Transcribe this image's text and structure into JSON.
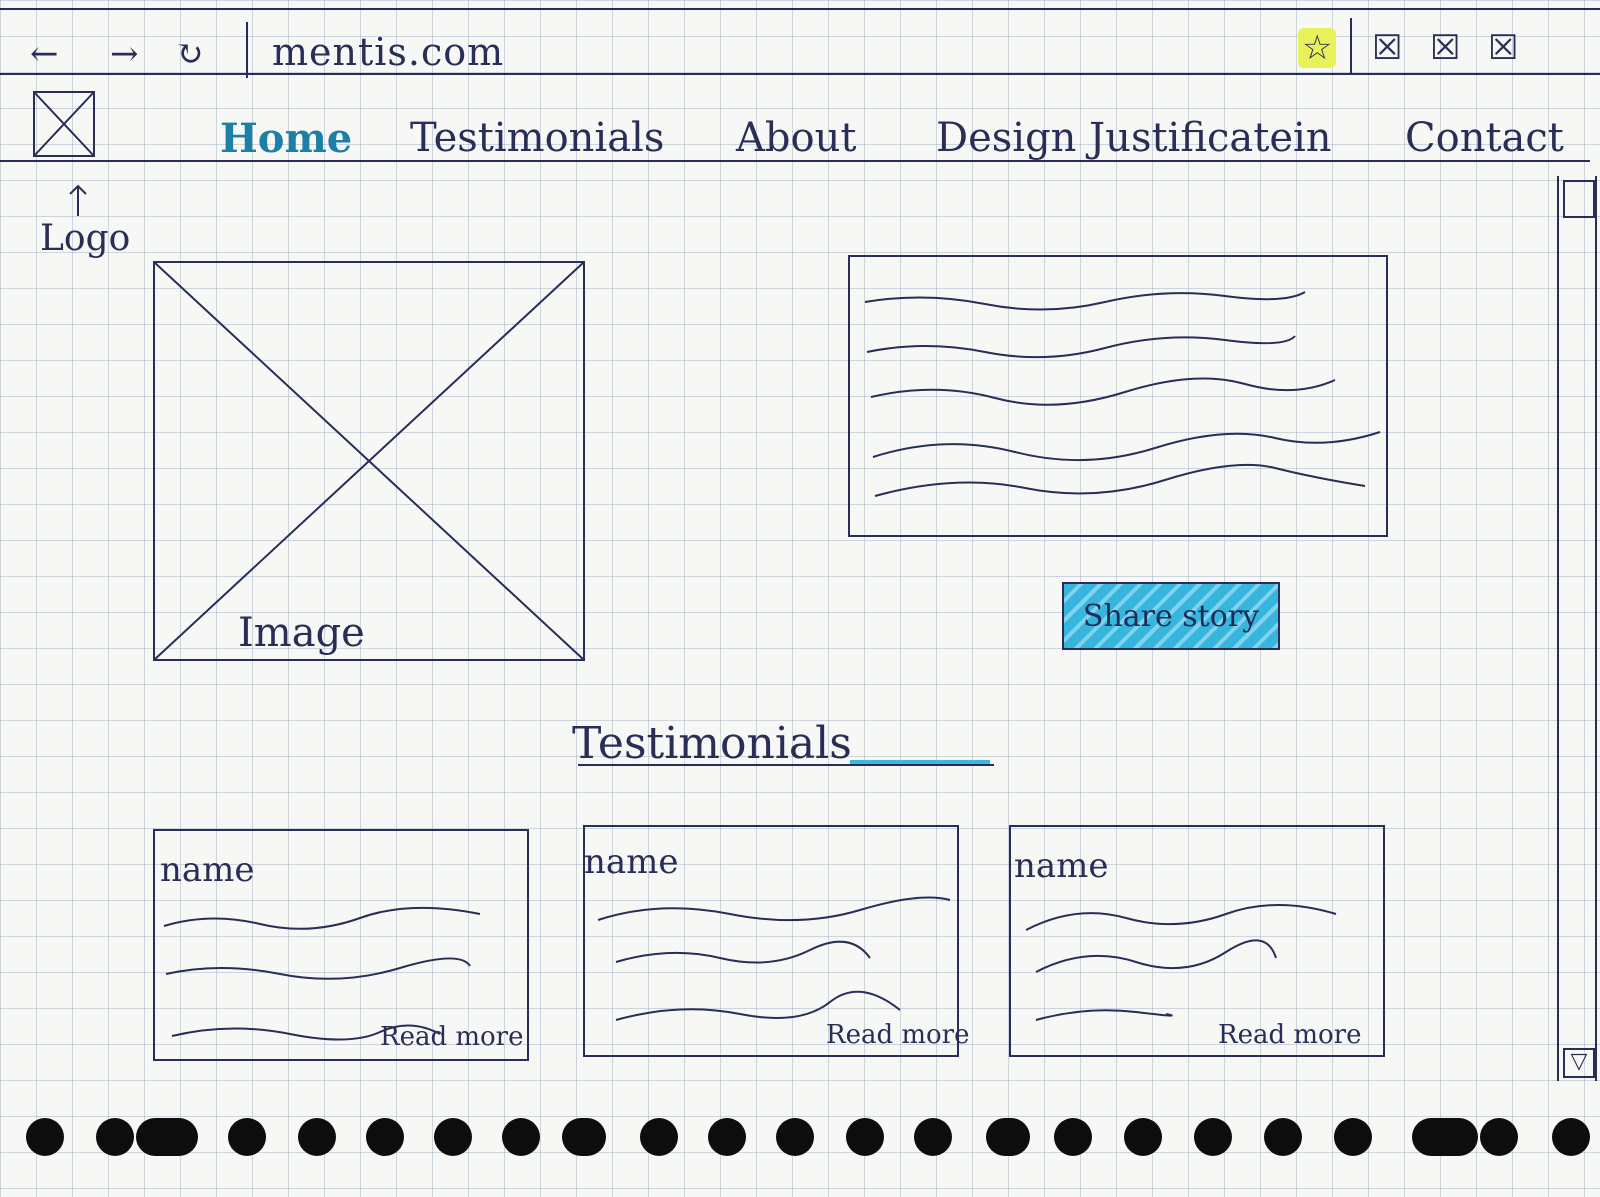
{
  "browser": {
    "back": "←",
    "forward": "→",
    "reload": "↻",
    "url": "mentis.com",
    "bookmark": "☆",
    "window_buttons": [
      "☒",
      "☒",
      "☒"
    ]
  },
  "logo": {
    "caption": "Logo"
  },
  "nav": {
    "items": [
      {
        "label": "Home"
      },
      {
        "label": "Testimonials"
      },
      {
        "label": "About"
      },
      {
        "label": "Design Justificatein"
      },
      {
        "label": "Contact"
      }
    ],
    "active_color": "#1d7fa6"
  },
  "hero": {
    "image_label": "Image",
    "share_button": "Share story",
    "share_color": "#36b6dc"
  },
  "testimonials": {
    "title": "Testimonials",
    "cards": [
      {
        "name": "name",
        "read_more": "Read more"
      },
      {
        "name": "name",
        "read_more": "Read more"
      },
      {
        "name": "name",
        "read_more": "Read more"
      }
    ]
  },
  "scrollbar": {
    "down_arrow": "▽"
  }
}
